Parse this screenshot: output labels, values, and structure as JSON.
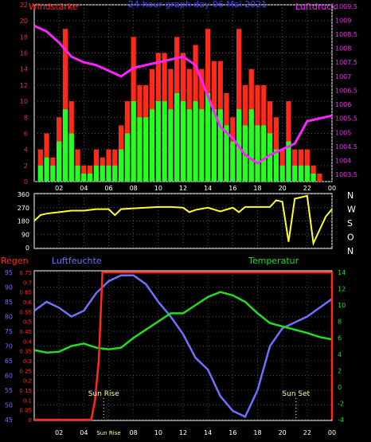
{
  "colors": {
    "wind": "#ff2a1a",
    "gust_overlay": "#22ff22",
    "pressure": "#ff22ff",
    "direction": "#ffff22",
    "rain": "#ff2a1a",
    "humidity": "#7070ff",
    "temperature": "#22dd22",
    "axis": "#ffffff"
  },
  "hours": [
    "02",
    "04",
    "06",
    "08",
    "10",
    "12",
    "14",
    "16",
    "18",
    "20",
    "22",
    "00"
  ],
  "chart_data": [
    {
      "type": "bar",
      "title": "24-hour graph day  06 Mai 2021",
      "left_label": "Windstärke",
      "right_label": "Luftdruck",
      "left_ticks": [
        "0",
        "2",
        "4",
        "6",
        "8",
        "10",
        "12",
        "14",
        "16",
        "18",
        "20",
        "22"
      ],
      "left_range": [
        0,
        22
      ],
      "right_ticks": [
        "1003.5",
        "1004",
        "1004.5",
        "1005",
        "1005.5",
        "1006",
        "1006.5",
        "1007",
        "1007.5",
        "1008",
        "1008.5",
        "1009",
        "1009.5"
      ],
      "right_range": [
        1003.25,
        1009.55
      ],
      "wind_gust_x": [
        0.5,
        1,
        1.5,
        2,
        2.5,
        3,
        3.5,
        4,
        4.5,
        5,
        5.5,
        6,
        6.5,
        7,
        7.5,
        8,
        8.5,
        9,
        9.5,
        10,
        10.5,
        11,
        11.5,
        12,
        12.5,
        13,
        13.5,
        14,
        14.5,
        15,
        15.5,
        16,
        16.5,
        17,
        17.5,
        18,
        18.5,
        19,
        19.5,
        20,
        20.5,
        21,
        21.5,
        22,
        22.5,
        23,
        23.5
      ],
      "wind_gust": [
        4,
        6,
        3,
        8,
        19,
        10,
        4,
        2,
        2,
        4,
        3,
        4,
        4,
        7,
        10,
        18,
        12,
        12,
        14,
        16,
        16,
        14,
        18,
        16,
        14,
        17,
        14,
        19,
        15,
        15,
        11,
        8,
        19,
        12,
        14,
        12,
        12,
        10,
        8,
        4,
        10,
        4,
        4,
        4,
        2,
        1,
        0
      ],
      "wind_avg": [
        2,
        3,
        2,
        5,
        9,
        6,
        2,
        1,
        1,
        2,
        2,
        2,
        2,
        4,
        6,
        10,
        8,
        8,
        9,
        10,
        10,
        9,
        11,
        10,
        9,
        10,
        9,
        11,
        9,
        9,
        7,
        5,
        9,
        7,
        9,
        7,
        7,
        6,
        4,
        2,
        5,
        2,
        2,
        2,
        1,
        0,
        0
      ],
      "pressure_x": [
        0,
        1,
        2,
        3,
        4,
        5,
        6,
        7,
        8,
        9,
        10,
        11,
        12,
        13,
        14,
        15,
        16,
        17,
        18,
        19,
        20,
        21,
        22,
        23,
        24
      ],
      "pressure": [
        1008.8,
        1008.6,
        1008.2,
        1007.7,
        1007.5,
        1007.4,
        1007.2,
        1007.0,
        1007.3,
        1007.4,
        1007.5,
        1007.6,
        1007.7,
        1007.4,
        1006.3,
        1005.2,
        1004.8,
        1004.2,
        1003.9,
        1004.2,
        1004.4,
        1004.6,
        1005.4,
        1005.5,
        1005.6
      ]
    },
    {
      "type": "line",
      "labels_right": [
        "N",
        "W",
        "S",
        "O",
        "N"
      ],
      "ticks": [
        "0",
        "90",
        "180",
        "270",
        "360"
      ],
      "range": [
        0,
        360
      ],
      "x": [
        0,
        0.5,
        1,
        2,
        3,
        4,
        5,
        6,
        6.5,
        7,
        8,
        9,
        10,
        11,
        12,
        12.5,
        13,
        14,
        15,
        16,
        16.5,
        17,
        18,
        19,
        19.5,
        20,
        20.5,
        21,
        21.5,
        22,
        22.5,
        23,
        23.5,
        24
      ],
      "direction": [
        180,
        220,
        230,
        240,
        250,
        250,
        260,
        260,
        220,
        260,
        265,
        270,
        275,
        275,
        270,
        240,
        255,
        270,
        245,
        270,
        240,
        275,
        275,
        275,
        320,
        310,
        40,
        330,
        340,
        350,
        30,
        120,
        210,
        260
      ]
    },
    {
      "type": "line",
      "left_label": "Regen",
      "middle_label": "Luftfeuchte",
      "right_label": "Temperatur",
      "rain_ticks": [
        "0",
        "0.05",
        "0.1",
        "0.15",
        "0.2",
        "0.25",
        "0.3",
        "0.35",
        "0.4",
        "0.45",
        "0.5",
        "0.55",
        "0.6",
        "0.65",
        "0.7",
        "0.75"
      ],
      "rain_range": [
        0,
        0.75
      ],
      "humidity_ticks": [
        "45",
        "50",
        "55",
        "60",
        "65",
        "70",
        "75",
        "80",
        "85",
        "90",
        "95"
      ],
      "humidity_range": [
        45,
        95
      ],
      "temp_ticks": [
        "-4",
        "-2",
        "0",
        "2",
        "4",
        "6",
        "8",
        "10",
        "12",
        "14"
      ],
      "temp_range": [
        -4,
        14
      ],
      "x": [
        0,
        1,
        2,
        3,
        4,
        5,
        6,
        7,
        8,
        9,
        10,
        11,
        12,
        13,
        14,
        15,
        16,
        17,
        18,
        19,
        20,
        21,
        22,
        23,
        24
      ],
      "humidity": [
        82,
        85,
        83,
        80,
        82,
        88,
        92,
        94,
        94,
        91,
        85,
        80,
        74,
        66,
        62,
        53,
        48,
        46,
        55,
        70,
        76,
        78,
        80,
        83,
        86
      ],
      "temperature": [
        4.5,
        4.2,
        4.3,
        5,
        5.3,
        4.8,
        4.6,
        4.8,
        6,
        7,
        8,
        9,
        9,
        10,
        11,
        11.6,
        11.2,
        10.4,
        9,
        7.8,
        7.4,
        7,
        6.6,
        6.1,
        5.8
      ],
      "rain_x": [
        0,
        4.6,
        4.9,
        5.2,
        5.4,
        5.5,
        5.55,
        24
      ],
      "rain": [
        0,
        0,
        0.1,
        0.3,
        0.6,
        0.75,
        0.75,
        0.75
      ],
      "annotations": [
        "Sun Rise",
        "Sun Set"
      ],
      "sun_rise_x": 5.6,
      "sun_set_x": 21.1,
      "xtick_label_06": "Sun Rise"
    }
  ]
}
